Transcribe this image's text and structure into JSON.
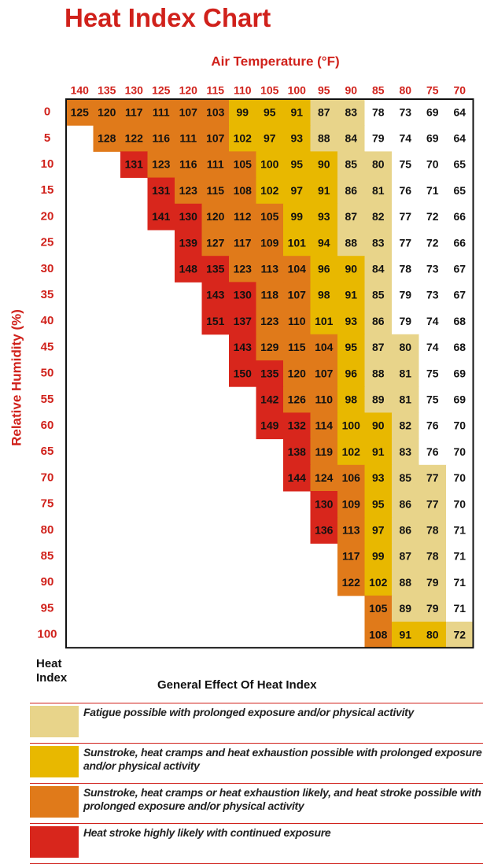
{
  "title": "Heat Index Chart",
  "x_axis_label": "Air Temperature (°F)",
  "y_axis_label": "Relative Humidity (%)",
  "temperatures": [
    140,
    135,
    130,
    125,
    120,
    115,
    110,
    105,
    100,
    95,
    90,
    85,
    80,
    75,
    70
  ],
  "rows": [
    {
      "humidity": 0,
      "values": [
        125,
        120,
        117,
        111,
        107,
        103,
        99,
        95,
        91,
        87,
        83,
        78,
        73,
        69,
        64
      ],
      "colors": [
        "#e07a1a",
        "#e07a1a",
        "#e07a1a",
        "#e07a1a",
        "#e07a1a",
        "#e07a1a",
        "#e8b800",
        "#e8b800",
        "#e8b800",
        "#e8d48a",
        "#e8d48a",
        "#ffffff",
        "#ffffff",
        "#ffffff",
        "#ffffff"
      ]
    },
    {
      "humidity": 5,
      "values": [
        null,
        128,
        122,
        116,
        111,
        107,
        102,
        97,
        93,
        88,
        84,
        79,
        74,
        69,
        64
      ],
      "colors": [
        null,
        "#e07a1a",
        "#e07a1a",
        "#e07a1a",
        "#e07a1a",
        "#e07a1a",
        "#e8b800",
        "#e8b800",
        "#e8b800",
        "#e8d48a",
        "#e8d48a",
        "#ffffff",
        "#ffffff",
        "#ffffff",
        "#ffffff"
      ]
    },
    {
      "humidity": 10,
      "values": [
        null,
        null,
        131,
        123,
        116,
        111,
        105,
        100,
        95,
        90,
        85,
        80,
        75,
        70,
        65
      ],
      "colors": [
        null,
        null,
        "#d8261c",
        "#e07a1a",
        "#e07a1a",
        "#e07a1a",
        "#e07a1a",
        "#e8b800",
        "#e8b800",
        "#e8b800",
        "#e8d48a",
        "#e8d48a",
        "#ffffff",
        "#ffffff",
        "#ffffff"
      ]
    },
    {
      "humidity": 15,
      "values": [
        null,
        null,
        null,
        131,
        123,
        115,
        108,
        102,
        97,
        91,
        86,
        81,
        76,
        71,
        65
      ],
      "colors": [
        null,
        null,
        null,
        "#d8261c",
        "#e07a1a",
        "#e07a1a",
        "#e07a1a",
        "#e8b800",
        "#e8b800",
        "#e8b800",
        "#e8d48a",
        "#e8d48a",
        "#ffffff",
        "#ffffff",
        "#ffffff"
      ]
    },
    {
      "humidity": 20,
      "values": [
        null,
        null,
        null,
        141,
        130,
        120,
        112,
        105,
        99,
        93,
        87,
        82,
        77,
        72,
        66
      ],
      "colors": [
        null,
        null,
        null,
        "#d8261c",
        "#d8261c",
        "#e07a1a",
        "#e07a1a",
        "#e07a1a",
        "#e8b800",
        "#e8b800",
        "#e8d48a",
        "#e8d48a",
        "#ffffff",
        "#ffffff",
        "#ffffff"
      ]
    },
    {
      "humidity": 25,
      "values": [
        null,
        null,
        null,
        null,
        139,
        127,
        117,
        109,
        101,
        94,
        88,
        83,
        77,
        72,
        66
      ],
      "colors": [
        null,
        null,
        null,
        null,
        "#d8261c",
        "#e07a1a",
        "#e07a1a",
        "#e07a1a",
        "#e8b800",
        "#e8b800",
        "#e8d48a",
        "#e8d48a",
        "#ffffff",
        "#ffffff",
        "#ffffff"
      ]
    },
    {
      "humidity": 30,
      "values": [
        null,
        null,
        null,
        null,
        148,
        135,
        123,
        113,
        104,
        96,
        90,
        84,
        78,
        73,
        67
      ],
      "colors": [
        null,
        null,
        null,
        null,
        "#d8261c",
        "#d8261c",
        "#e07a1a",
        "#e07a1a",
        "#e07a1a",
        "#e8b800",
        "#e8b800",
        "#e8d48a",
        "#ffffff",
        "#ffffff",
        "#ffffff"
      ]
    },
    {
      "humidity": 35,
      "values": [
        null,
        null,
        null,
        null,
        null,
        143,
        130,
        118,
        107,
        98,
        91,
        85,
        79,
        73,
        67
      ],
      "colors": [
        null,
        null,
        null,
        null,
        null,
        "#d8261c",
        "#d8261c",
        "#e07a1a",
        "#e07a1a",
        "#e8b800",
        "#e8b800",
        "#e8d48a",
        "#ffffff",
        "#ffffff",
        "#ffffff"
      ]
    },
    {
      "humidity": 40,
      "values": [
        null,
        null,
        null,
        null,
        null,
        151,
        137,
        123,
        110,
        101,
        93,
        86,
        79,
        74,
        68
      ],
      "colors": [
        null,
        null,
        null,
        null,
        null,
        "#d8261c",
        "#d8261c",
        "#e07a1a",
        "#e07a1a",
        "#e8b800",
        "#e8b800",
        "#e8d48a",
        "#ffffff",
        "#ffffff",
        "#ffffff"
      ]
    },
    {
      "humidity": 45,
      "values": [
        null,
        null,
        null,
        null,
        null,
        null,
        143,
        129,
        115,
        104,
        95,
        87,
        80,
        74,
        68
      ],
      "colors": [
        null,
        null,
        null,
        null,
        null,
        null,
        "#d8261c",
        "#e07a1a",
        "#e07a1a",
        "#e07a1a",
        "#e8b800",
        "#e8d48a",
        "#e8d48a",
        "#ffffff",
        "#ffffff"
      ]
    },
    {
      "humidity": 50,
      "values": [
        null,
        null,
        null,
        null,
        null,
        null,
        150,
        135,
        120,
        107,
        96,
        88,
        81,
        75,
        69
      ],
      "colors": [
        null,
        null,
        null,
        null,
        null,
        null,
        "#d8261c",
        "#d8261c",
        "#e07a1a",
        "#e07a1a",
        "#e8b800",
        "#e8d48a",
        "#e8d48a",
        "#ffffff",
        "#ffffff"
      ]
    },
    {
      "humidity": 55,
      "values": [
        null,
        null,
        null,
        null,
        null,
        null,
        null,
        142,
        126,
        110,
        98,
        89,
        81,
        75,
        69
      ],
      "colors": [
        null,
        null,
        null,
        null,
        null,
        null,
        null,
        "#d8261c",
        "#e07a1a",
        "#e07a1a",
        "#e8b800",
        "#e8d48a",
        "#e8d48a",
        "#ffffff",
        "#ffffff"
      ]
    },
    {
      "humidity": 60,
      "values": [
        null,
        null,
        null,
        null,
        null,
        null,
        null,
        149,
        132,
        114,
        100,
        90,
        82,
        76,
        70
      ],
      "colors": [
        null,
        null,
        null,
        null,
        null,
        null,
        null,
        "#d8261c",
        "#d8261c",
        "#e07a1a",
        "#e8b800",
        "#e8b800",
        "#e8d48a",
        "#ffffff",
        "#ffffff"
      ]
    },
    {
      "humidity": 65,
      "values": [
        null,
        null,
        null,
        null,
        null,
        null,
        null,
        null,
        138,
        119,
        102,
        91,
        83,
        76,
        70
      ],
      "colors": [
        null,
        null,
        null,
        null,
        null,
        null,
        null,
        null,
        "#d8261c",
        "#e07a1a",
        "#e8b800",
        "#e8b800",
        "#e8d48a",
        "#ffffff",
        "#ffffff"
      ]
    },
    {
      "humidity": 70,
      "values": [
        null,
        null,
        null,
        null,
        null,
        null,
        null,
        null,
        144,
        124,
        106,
        93,
        85,
        77,
        70
      ],
      "colors": [
        null,
        null,
        null,
        null,
        null,
        null,
        null,
        null,
        "#d8261c",
        "#e07a1a",
        "#e07a1a",
        "#e8b800",
        "#e8d48a",
        "#e8d48a",
        "#ffffff"
      ]
    },
    {
      "humidity": 75,
      "values": [
        null,
        null,
        null,
        null,
        null,
        null,
        null,
        null,
        null,
        130,
        109,
        95,
        86,
        77,
        70
      ],
      "colors": [
        null,
        null,
        null,
        null,
        null,
        null,
        null,
        null,
        null,
        "#d8261c",
        "#e07a1a",
        "#e8b800",
        "#e8d48a",
        "#e8d48a",
        "#ffffff"
      ]
    },
    {
      "humidity": 80,
      "values": [
        null,
        null,
        null,
        null,
        null,
        null,
        null,
        null,
        null,
        136,
        113,
        97,
        86,
        78,
        71
      ],
      "colors": [
        null,
        null,
        null,
        null,
        null,
        null,
        null,
        null,
        null,
        "#d8261c",
        "#e07a1a",
        "#e8b800",
        "#e8d48a",
        "#e8d48a",
        "#ffffff"
      ]
    },
    {
      "humidity": 85,
      "values": [
        null,
        null,
        null,
        null,
        null,
        null,
        null,
        null,
        null,
        null,
        117,
        99,
        87,
        78,
        71
      ],
      "colors": [
        null,
        null,
        null,
        null,
        null,
        null,
        null,
        null,
        null,
        null,
        "#e07a1a",
        "#e8b800",
        "#e8d48a",
        "#e8d48a",
        "#ffffff"
      ]
    },
    {
      "humidity": 90,
      "values": [
        null,
        null,
        null,
        null,
        null,
        null,
        null,
        null,
        null,
        null,
        122,
        102,
        88,
        79,
        71
      ],
      "colors": [
        null,
        null,
        null,
        null,
        null,
        null,
        null,
        null,
        null,
        null,
        "#e07a1a",
        "#e8b800",
        "#e8d48a",
        "#e8d48a",
        "#ffffff"
      ]
    },
    {
      "humidity": 95,
      "values": [
        null,
        null,
        null,
        null,
        null,
        null,
        null,
        null,
        null,
        null,
        null,
        105,
        89,
        79,
        71
      ],
      "colors": [
        null,
        null,
        null,
        null,
        null,
        null,
        null,
        null,
        null,
        null,
        null,
        "#e07a1a",
        "#e8d48a",
        "#e8d48a",
        "#ffffff"
      ]
    },
    {
      "humidity": 100,
      "values": [
        null,
        null,
        null,
        null,
        null,
        null,
        null,
        null,
        null,
        null,
        null,
        108,
        91,
        80,
        72
      ],
      "colors": [
        null,
        null,
        null,
        null,
        null,
        null,
        null,
        null,
        null,
        null,
        null,
        "#e07a1a",
        "#e8b800",
        "#e8b800",
        "#e8d48a"
      ]
    }
  ],
  "legend": {
    "index_header": "Heat Index",
    "effect_header": "General Effect Of Heat Index",
    "items": [
      {
        "color": "#e8d48a",
        "text": "Fatigue possible with prolonged exposure and/or physical activity"
      },
      {
        "color": "#e8b800",
        "text": "Sunstroke, heat cramps and heat exhaustion possible with prolonged exposure and/or physical activity"
      },
      {
        "color": "#e07a1a",
        "text": "Sunstroke, heat cramps or heat exhaustion likely, and heat stroke possible with prolonged exposure and/or physical activity"
      },
      {
        "color": "#d8261c",
        "text": "Heat stroke highly likely with continued exposure"
      }
    ]
  }
}
